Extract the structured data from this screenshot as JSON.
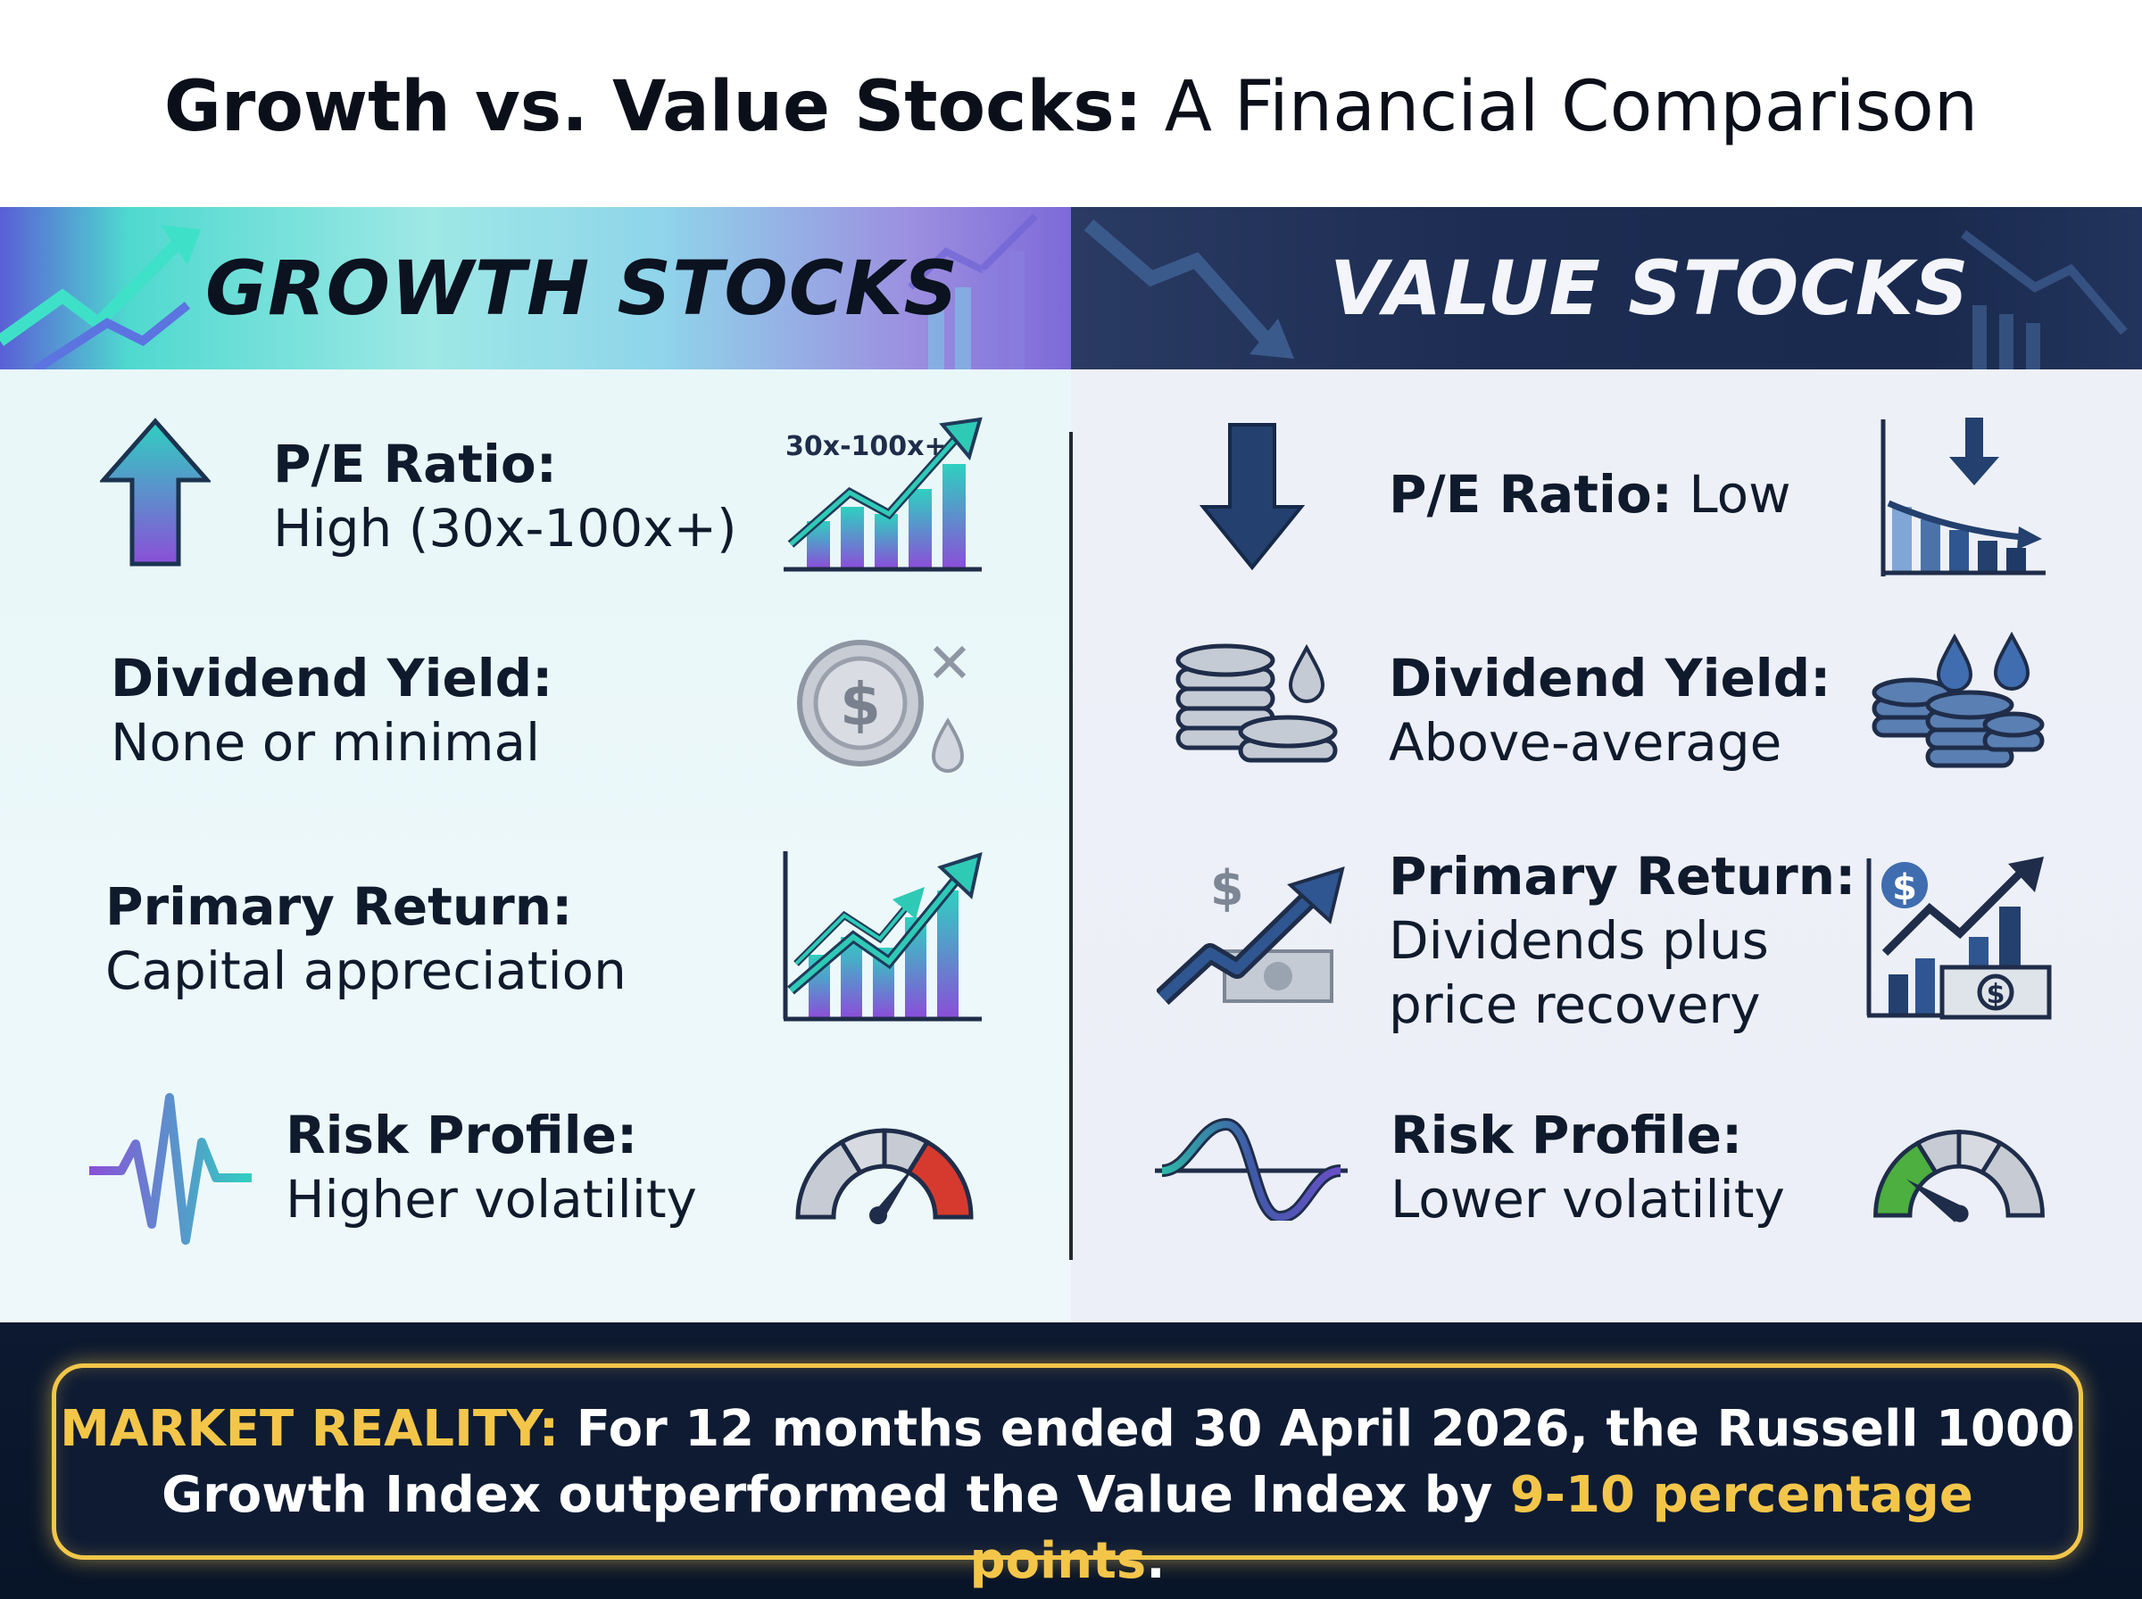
{
  "title": {
    "bold": "Growth vs. Value Stocks:",
    "rest": " A Financial Comparison"
  },
  "growth": {
    "header": "GROWTH STOCKS",
    "pe": {
      "label": "P/E Ratio:",
      "value": "High (30x-100x+)",
      "icon_badge": "30x-100x+"
    },
    "dividend": {
      "label": "Dividend Yield:",
      "value": "None or minimal"
    },
    "return": {
      "label": "Primary Return:",
      "value": "Capital appreciation"
    },
    "risk": {
      "label": "Risk Profile:",
      "value": "Higher volatility"
    }
  },
  "value": {
    "header": "VALUE STOCKS",
    "pe": {
      "label": "P/E Ratio:",
      "value": " Low"
    },
    "dividend": {
      "label": "Dividend Yield:",
      "value": "Above-average"
    },
    "return": {
      "label": "Primary Return:",
      "value_line1": "Dividends plus",
      "value_line2": "price recovery"
    },
    "risk": {
      "label": "Risk Profile:",
      "value": "Lower volatility"
    }
  },
  "footer": {
    "prefix": "MARKET REALITY:",
    "line1": " For 12 months ended 30 April 2026, the Russell 1000",
    "line2": "Growth Index outperformed the Value Index by ",
    "highlight": "9-10 percentage points",
    "end": "."
  },
  "colors": {
    "teal": "#2fc4b8",
    "purple": "#7b55d6",
    "navy": "#1f3a66",
    "gold": "#f3c64a",
    "red": "#d63a2e",
    "green": "#4caf3f"
  }
}
